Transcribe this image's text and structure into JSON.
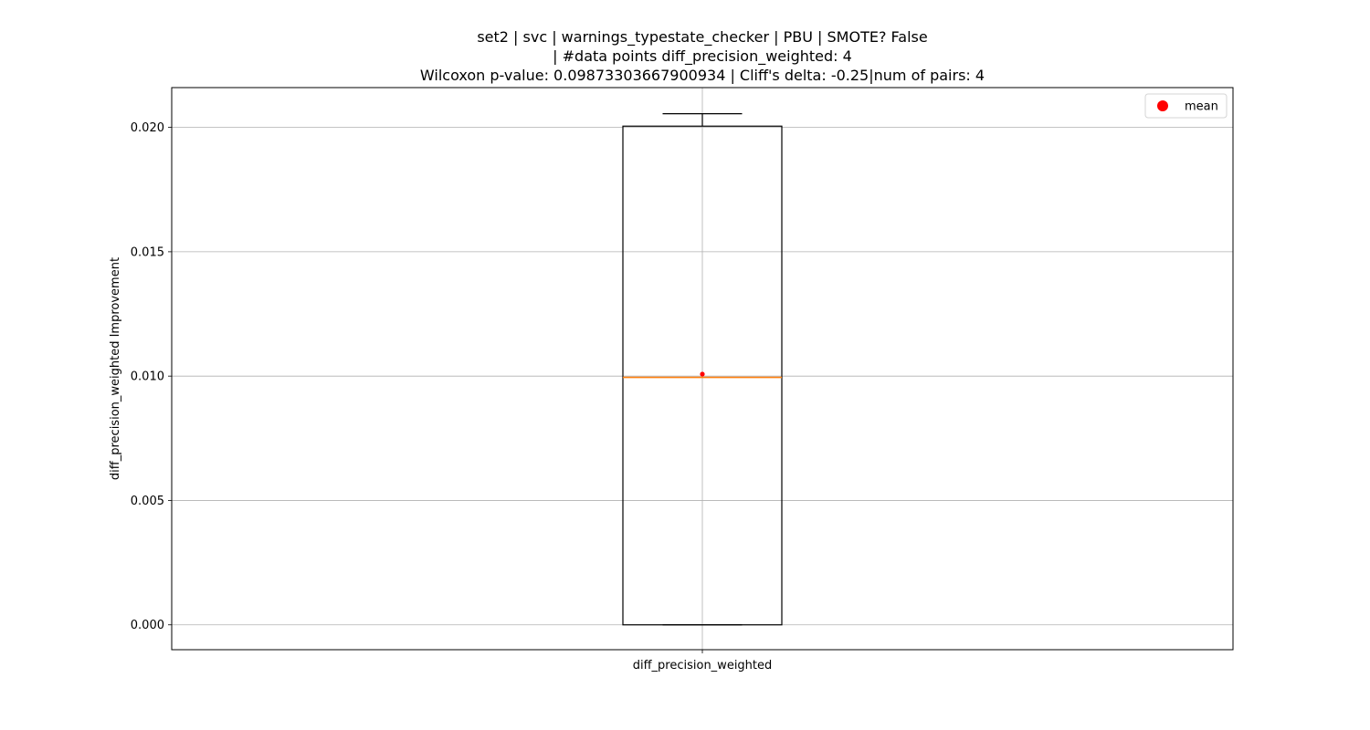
{
  "chart_data": {
    "type": "box",
    "title_lines": [
      "set2 | svc | warnings_typestate_checker | PBU | SMOTE? False",
      "| #data points diff_precision_weighted: 4",
      "Wilcoxon p-value: 0.09873303667900934 | Cliff's delta: -0.25|num of pairs: 4"
    ],
    "xlabel": "",
    "ylabel": "diff_precision_weighted Improvement",
    "categories": [
      "diff_precision_weighted"
    ],
    "ylim": [
      -0.001,
      0.0216
    ],
    "yticks": [
      0.0,
      0.005,
      0.01,
      0.015,
      0.02
    ],
    "ytick_labels": [
      "0.000",
      "0.005",
      "0.010",
      "0.015",
      "0.020"
    ],
    "grid": true,
    "boxes": [
      {
        "name": "diff_precision_weighted",
        "whisker_low": 0.0,
        "q1": 0.0,
        "median": 0.00995,
        "q3": 0.02005,
        "whisker_high": 0.02055,
        "mean": 0.01008
      }
    ],
    "legend": {
      "placement": "top-right",
      "entries": [
        {
          "label": "mean",
          "marker": "circle",
          "color": "#ff0000"
        }
      ]
    },
    "colors": {
      "box": "#000000",
      "median": "#ff7f0e",
      "mean": "#ff0000",
      "grid": "#b0b0b0"
    }
  }
}
